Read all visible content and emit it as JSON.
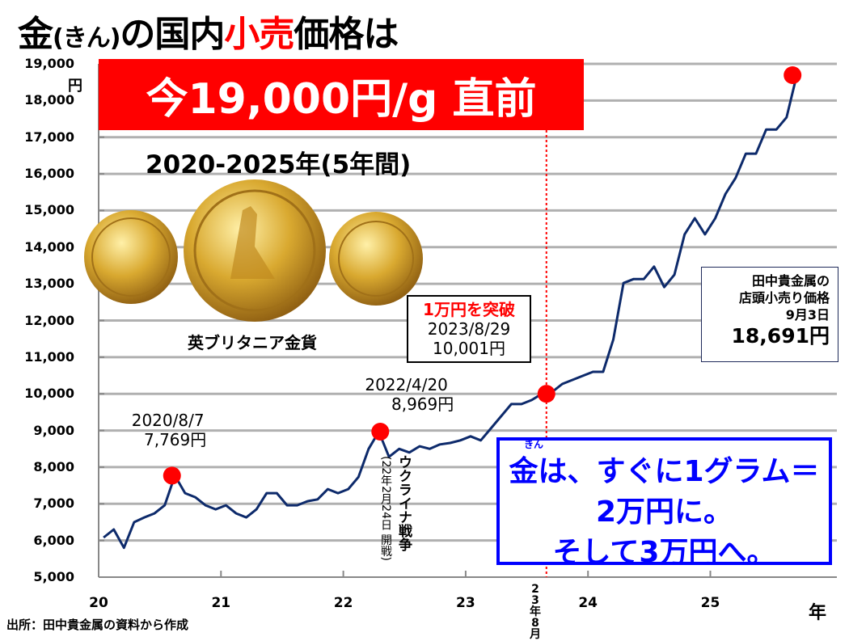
{
  "title": {
    "part1": "金",
    "reading": "(きん)",
    "part2": "の国内",
    "highlight": "小売",
    "part3": "価格は"
  },
  "banner": "今19,000円/g 直前",
  "subtitle": "2020-2025年(5年間)",
  "coin_caption": "英ブリタニア金貨",
  "source": "出所：田中貴金属の資料から作成",
  "colors": {
    "line": "#0d2a6b",
    "marker": "#ff0000",
    "banner": "#ff0000",
    "message": "#0000ff",
    "grid": "#b0b0b0"
  },
  "annotations": {
    "peak2020": {
      "date": "2020/8/7",
      "value": "7,769円"
    },
    "peak2022": {
      "date": "2022/4/20",
      "value": "8,969円"
    },
    "break10k": {
      "heading": "1万円を突破",
      "date": "2023/8/29",
      "value": "10,001円"
    },
    "ukraine": {
      "label": "ウクライナ戦争",
      "note": "(22年2月24日 開戦)"
    },
    "aug23": "23年8月",
    "latest": {
      "line1": "田中貴金属の",
      "line2": "店頭小売り価格",
      "line3": "9月3日",
      "value": "18,691円"
    }
  },
  "message": {
    "ruby": "きん",
    "line1": "金は、すぐに1グラム＝",
    "line2": "2万円に。",
    "line3": "そして3万円へ。"
  },
  "chart_data": {
    "type": "line",
    "title": "金(きん)の国内小売価格は",
    "ylabel": "円",
    "xlabel": "年",
    "ylim": [
      5000,
      19000
    ],
    "xlim": [
      2020,
      2025.75
    ],
    "grid": true,
    "yticks": [
      "5,000",
      "6,000",
      "7,000",
      "8,000",
      "9,000",
      "10,000",
      "11,000",
      "12,000",
      "13,000",
      "14,000",
      "15,000",
      "16,000",
      "17,000",
      "18,000",
      "19,000"
    ],
    "xticks": [
      "20",
      "21",
      "22",
      "23",
      "24",
      "25"
    ],
    "series": [
      {
        "x": [
          "2020-01",
          "2020-02",
          "2020-03",
          "2020-04",
          "2020-05",
          "2020-06",
          "2020-07",
          "2020-08",
          "2020-09",
          "2020-10",
          "2020-11",
          "2020-12",
          "2021-01",
          "2021-02",
          "2021-03",
          "2021-04",
          "2021-05",
          "2021-06",
          "2021-07",
          "2021-08",
          "2021-09",
          "2021-10",
          "2021-11",
          "2021-12",
          "2022-01",
          "2022-02",
          "2022-03",
          "2022-04",
          "2022-05",
          "2022-06",
          "2022-07",
          "2022-08",
          "2022-09",
          "2022-10",
          "2022-11",
          "2022-12",
          "2023-01",
          "2023-02",
          "2023-03",
          "2023-04",
          "2023-05",
          "2023-06",
          "2023-07",
          "2023-08",
          "2023-09",
          "2023-10",
          "2023-11",
          "2023-12",
          "2024-01",
          "2024-02",
          "2024-03",
          "2024-04",
          "2024-05",
          "2024-06",
          "2024-07",
          "2024-08",
          "2024-09",
          "2024-10",
          "2024-11",
          "2024-12",
          "2025-01",
          "2025-02",
          "2025-03",
          "2025-04",
          "2025-05",
          "2025-06",
          "2025-07",
          "2025-08",
          "2025-09"
        ],
        "values": [
          6080,
          6300,
          5800,
          6500,
          6630,
          6740,
          6960,
          7769,
          7290,
          7180,
          6960,
          6850,
          6960,
          6740,
          6630,
          6850,
          7290,
          7290,
          6960,
          6960,
          7070,
          7120,
          7400,
          7290,
          7400,
          7730,
          8500,
          8969,
          8280,
          8500,
          8400,
          8570,
          8500,
          8620,
          8660,
          8730,
          8840,
          8730,
          9060,
          9390,
          9720,
          9720,
          9830,
          10001,
          10050,
          10270,
          10380,
          10490,
          10600,
          10600,
          11480,
          13020,
          13130,
          13130,
          13470,
          12910,
          13250,
          14350,
          14790,
          14350,
          14790,
          15450,
          15890,
          16550,
          16550,
          17210,
          17210,
          17540,
          18691
        ]
      }
    ],
    "markers": [
      {
        "date": "2020-08-07",
        "value": 7769
      },
      {
        "date": "2022-04-20",
        "value": 8969
      },
      {
        "date": "2023-08-29",
        "value": 10001
      },
      {
        "date": "2025-09-03",
        "value": 18691
      }
    ]
  }
}
